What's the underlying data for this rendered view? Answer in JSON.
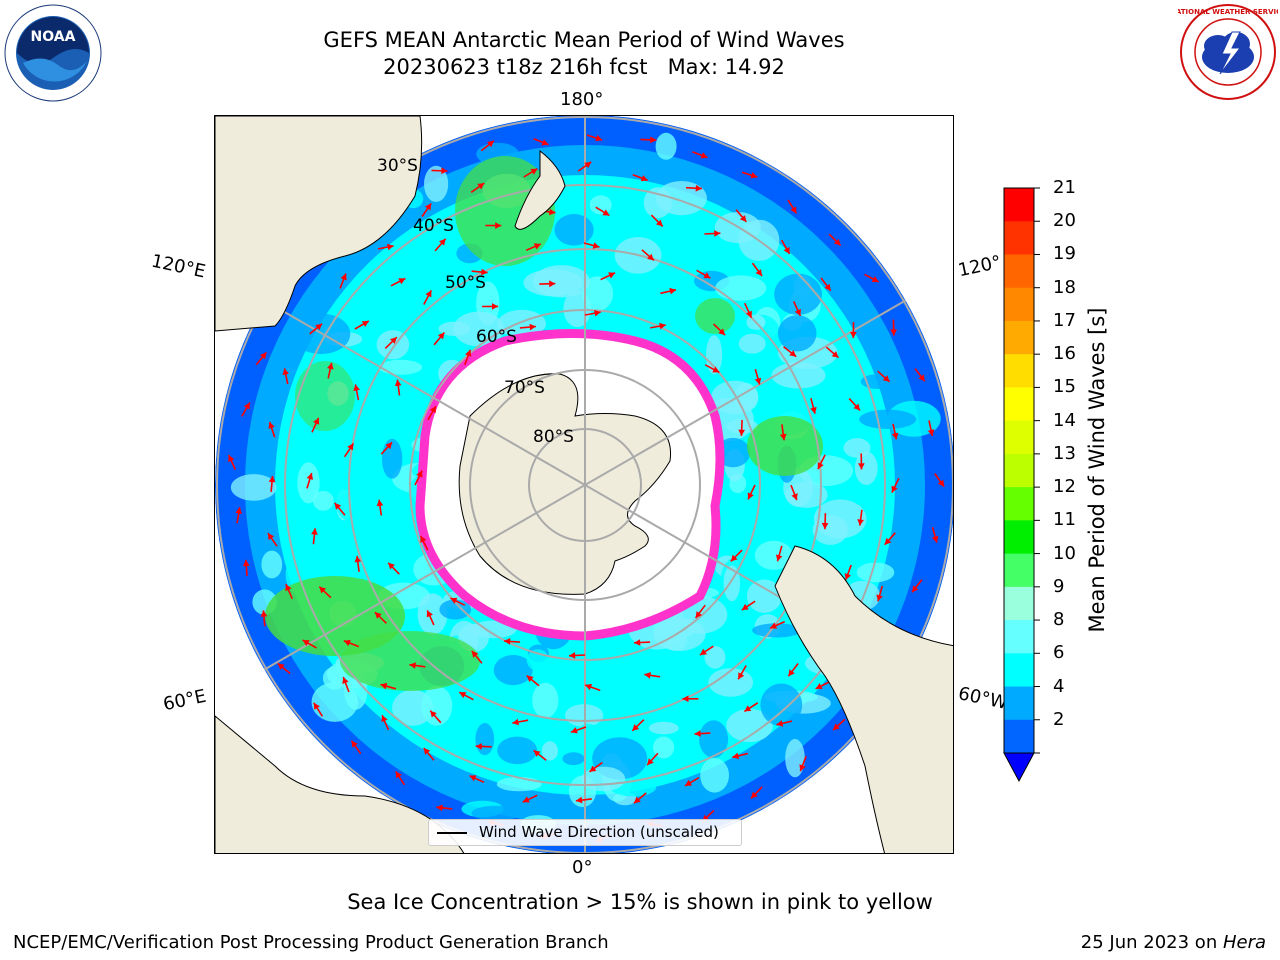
{
  "header": {
    "title_line1": "GEFS MEAN Antarctic Mean Period of Wind Waves",
    "title_line2": "20230623 t18z 216h fcst   Max: 14.92"
  },
  "logos": {
    "noaa_text": "NOAA",
    "nws_text": "NATIONAL WEATHER SERVICE"
  },
  "map": {
    "longitude_labels": {
      "top": "180°",
      "bottom": "0°",
      "left_upper": "120°E",
      "left_lower": "60°E",
      "right_upper": "120°",
      "right_lower": "60°W"
    },
    "latitude_labels": [
      "30°S",
      "40°S",
      "50°S",
      "60°S",
      "70°S",
      "80°S"
    ],
    "legend_label": "Wind Wave Direction (unscaled)",
    "colors": {
      "land": "#efecdc",
      "ice": "#ffffff",
      "deep_blue": "#0060ff",
      "mid_blue": "#00aaff",
      "cyan": "#00ffff",
      "light_cyan": "#7ff0ff",
      "green": "#44dd44",
      "arrow": "#ff0000",
      "ice_edge": "#ff33cc"
    }
  },
  "colorbar": {
    "title": "Mean Period of Wind Waves [s]",
    "ticks": [
      "21",
      "20",
      "19",
      "18",
      "17",
      "16",
      "15",
      "14",
      "13",
      "12",
      "11",
      "10",
      "9",
      "8",
      "6",
      "4",
      "2"
    ],
    "colors": [
      "#ff0000",
      "#ff3300",
      "#ff6600",
      "#ff8800",
      "#ffaa00",
      "#ffdd00",
      "#ffff00",
      "#ddff00",
      "#bbff00",
      "#66ff00",
      "#00ee00",
      "#44ff66",
      "#99ffdd",
      "#66ffff",
      "#00ffff",
      "#00aaff",
      "#0066ff"
    ],
    "extend_color": "#0000ff"
  },
  "caption": "Sea Ice Concentration > 15% is shown in pink to yellow",
  "footer": {
    "left": "NCEP/EMC/Verification Post Processing Product Generation Branch",
    "right_date": "25 Jun 2023 on ",
    "right_host": "Hera"
  }
}
